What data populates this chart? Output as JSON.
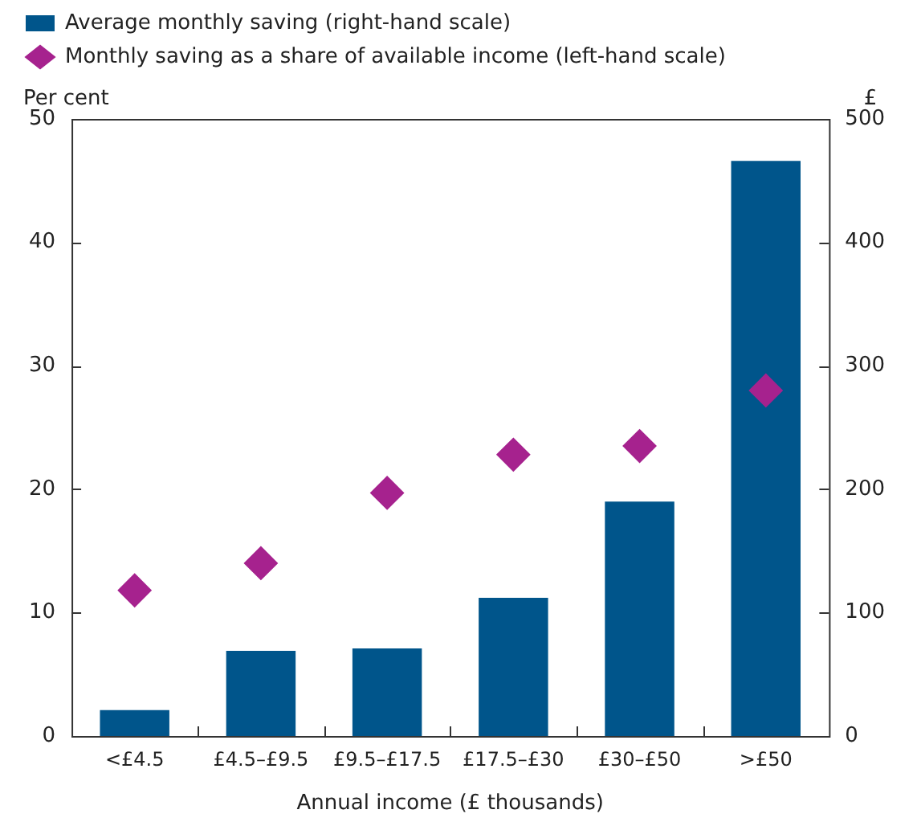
{
  "chart_data": {
    "type": "bar",
    "xlabel": "Annual income (£ thousands)",
    "ylabel": "Per cent",
    "y2label": "£",
    "categories": [
      "<£4.5",
      "£4.5–£9.5",
      "£9.5–£17.5",
      "£17.5–£30",
      "£30–£50",
      ">£50"
    ],
    "series": [
      {
        "name": "Average monthly saving (right-hand scale)",
        "type": "bar",
        "axis": "y2",
        "color": "#00558b",
        "values": [
          21,
          69,
          71,
          112,
          190,
          466
        ]
      },
      {
        "name": "Monthly saving as a share of available income (left-hand scale)",
        "type": "scatter",
        "marker": "diamond",
        "color": "#a6228e",
        "values": [
          11.8,
          14.0,
          19.7,
          22.8,
          23.5,
          28.0
        ]
      }
    ],
    "ylim": [
      0,
      50
    ],
    "yticks": [
      0,
      10,
      20,
      30,
      40,
      50
    ],
    "y2lim": [
      0,
      500
    ],
    "y2ticks": [
      0,
      100,
      200,
      300,
      400,
      500
    ],
    "grid": false,
    "legend": "top left"
  }
}
